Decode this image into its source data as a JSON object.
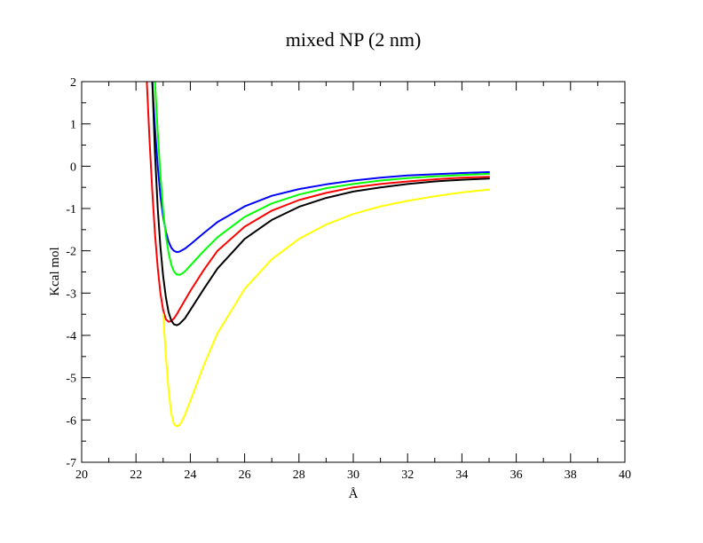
{
  "chart_data": {
    "type": "line",
    "title": "mixed NP (2 nm)",
    "xlabel": "Å",
    "ylabel": "Kcal mol",
    "xlim": [
      20,
      40
    ],
    "ylim": [
      -7,
      2
    ],
    "xticks": [
      20,
      22,
      24,
      26,
      28,
      30,
      32,
      34,
      36,
      38,
      40
    ],
    "yticks": [
      2,
      1,
      0,
      -1,
      -2,
      -3,
      -4,
      -5,
      -6,
      -7
    ],
    "grid": false,
    "legend": "none",
    "series": [
      {
        "color": "#0000ff",
        "x": [
          22.6,
          22.7,
          22.8,
          22.9,
          23.0,
          23.1,
          23.2,
          23.3,
          23.4,
          23.5,
          23.6,
          23.8,
          24.0,
          24.5,
          25.0,
          26.0,
          27.0,
          28.0,
          29.0,
          30.0,
          31.0,
          32.0,
          33.0,
          34.0,
          35.0
        ],
        "y": [
          2.0,
          0.9,
          0.0,
          -0.7,
          -1.2,
          -1.55,
          -1.78,
          -1.93,
          -2.0,
          -2.03,
          -2.02,
          -1.95,
          -1.85,
          -1.58,
          -1.32,
          -0.95,
          -0.7,
          -0.54,
          -0.43,
          -0.34,
          -0.27,
          -0.22,
          -0.19,
          -0.16,
          -0.14
        ]
      },
      {
        "color": "#00ff00",
        "x": [
          22.7,
          22.8,
          22.9,
          23.0,
          23.1,
          23.2,
          23.3,
          23.4,
          23.5,
          23.6,
          23.7,
          23.8,
          24.0,
          24.5,
          25.0,
          26.0,
          27.0,
          28.0,
          29.0,
          30.0,
          31.0,
          32.0,
          33.0,
          34.0,
          35.0
        ],
        "y": [
          2.0,
          0.8,
          -0.2,
          -1.05,
          -1.65,
          -2.05,
          -2.33,
          -2.49,
          -2.56,
          -2.57,
          -2.54,
          -2.49,
          -2.35,
          -2.0,
          -1.68,
          -1.2,
          -0.88,
          -0.67,
          -0.52,
          -0.42,
          -0.34,
          -0.28,
          -0.24,
          -0.21,
          -0.18
        ]
      },
      {
        "color": "#ff0000",
        "x": [
          22.4,
          22.5,
          22.6,
          22.7,
          22.8,
          22.9,
          23.0,
          23.1,
          23.2,
          23.3,
          23.4,
          23.5,
          23.7,
          24.0,
          24.5,
          25.0,
          26.0,
          27.0,
          28.0,
          29.0,
          30.0,
          31.0,
          32.0,
          33.0,
          34.0,
          35.0
        ],
        "y": [
          2.0,
          0.6,
          -0.6,
          -1.6,
          -2.4,
          -3.0,
          -3.4,
          -3.62,
          -3.68,
          -3.66,
          -3.6,
          -3.5,
          -3.28,
          -2.95,
          -2.45,
          -2.0,
          -1.43,
          -1.05,
          -0.8,
          -0.63,
          -0.5,
          -0.42,
          -0.36,
          -0.31,
          -0.27,
          -0.25
        ]
      },
      {
        "color": "#000000",
        "x": [
          22.6,
          22.7,
          22.8,
          22.9,
          23.0,
          23.1,
          23.2,
          23.3,
          23.4,
          23.5,
          23.6,
          23.8,
          24.0,
          24.5,
          25.0,
          26.0,
          27.0,
          28.0,
          29.0,
          30.0,
          31.0,
          32.0,
          33.0,
          34.0,
          35.0
        ],
        "y": [
          2.0,
          0.3,
          -1.0,
          -1.9,
          -2.6,
          -3.1,
          -3.45,
          -3.65,
          -3.74,
          -3.76,
          -3.73,
          -3.6,
          -3.4,
          -2.9,
          -2.42,
          -1.72,
          -1.27,
          -0.96,
          -0.75,
          -0.6,
          -0.5,
          -0.42,
          -0.36,
          -0.32,
          -0.29
        ]
      },
      {
        "color": "#ffff00",
        "x": [
          23.0,
          23.1,
          23.2,
          23.3,
          23.4,
          23.5,
          23.6,
          23.7,
          23.8,
          24.0,
          24.5,
          25.0,
          26.0,
          27.0,
          28.0,
          29.0,
          30.0,
          31.0,
          32.0,
          33.0,
          34.0,
          35.0
        ],
        "y": [
          -3.5,
          -4.5,
          -5.3,
          -5.85,
          -6.1,
          -6.15,
          -6.12,
          -6.02,
          -5.88,
          -5.55,
          -4.7,
          -3.95,
          -2.9,
          -2.2,
          -1.72,
          -1.38,
          -1.13,
          -0.95,
          -0.82,
          -0.71,
          -0.62,
          -0.55
        ]
      }
    ]
  }
}
